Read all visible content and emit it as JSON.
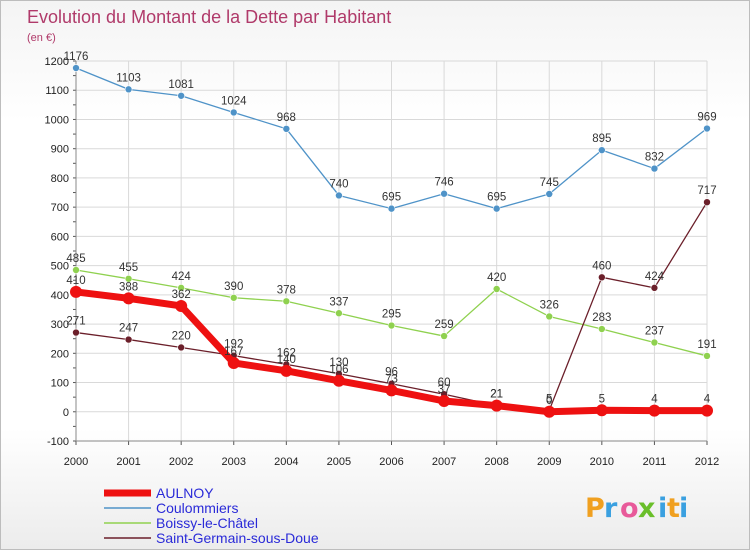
{
  "chart_data": {
    "type": "line",
    "title": "Evolution du Montant de la Dette par Habitant",
    "subtitle": "(en €)",
    "categories": [
      "2000",
      "2001",
      "2002",
      "2003",
      "2004",
      "2005",
      "2006",
      "2007",
      "2008",
      "2009",
      "2010",
      "2011",
      "2012"
    ],
    "ylim": [
      -100,
      1200
    ],
    "yticks": [
      -100,
      0,
      100,
      200,
      300,
      400,
      500,
      600,
      700,
      800,
      900,
      1000,
      1100,
      1200
    ],
    "grid": true,
    "legend_position": "bottom-left",
    "series": [
      {
        "name": "AULNOY",
        "color": "#ee1111",
        "values": [
          410,
          388,
          362,
          167,
          140,
          106,
          73,
          37,
          21,
          0,
          5,
          4,
          4
        ]
      },
      {
        "name": "Coulommiers",
        "color": "#4f93c8",
        "values": [
          1176,
          1103,
          1081,
          1024,
          968,
          740,
          695,
          746,
          695,
          745,
          895,
          832,
          969
        ]
      },
      {
        "name": "Boissy-le-Châtel",
        "color": "#8fd14f",
        "values": [
          485,
          455,
          424,
          390,
          378,
          337,
          295,
          259,
          420,
          326,
          283,
          237,
          191
        ]
      },
      {
        "name": "Saint-Germain-sous-Doue",
        "color": "#6b1f2a",
        "values": [
          271,
          247,
          220,
          192,
          162,
          130,
          96,
          60,
          21,
          5,
          460,
          424,
          717
        ]
      }
    ]
  },
  "logo": {
    "letters": [
      "P",
      "r",
      "o",
      "x",
      "i",
      "t",
      "i"
    ],
    "colors": [
      "#f0a020",
      "#3aa0e0",
      "#e85a9a",
      "#6abf2a",
      "#3aa0e0",
      "#f0a020",
      "#3aa0e0"
    ]
  }
}
